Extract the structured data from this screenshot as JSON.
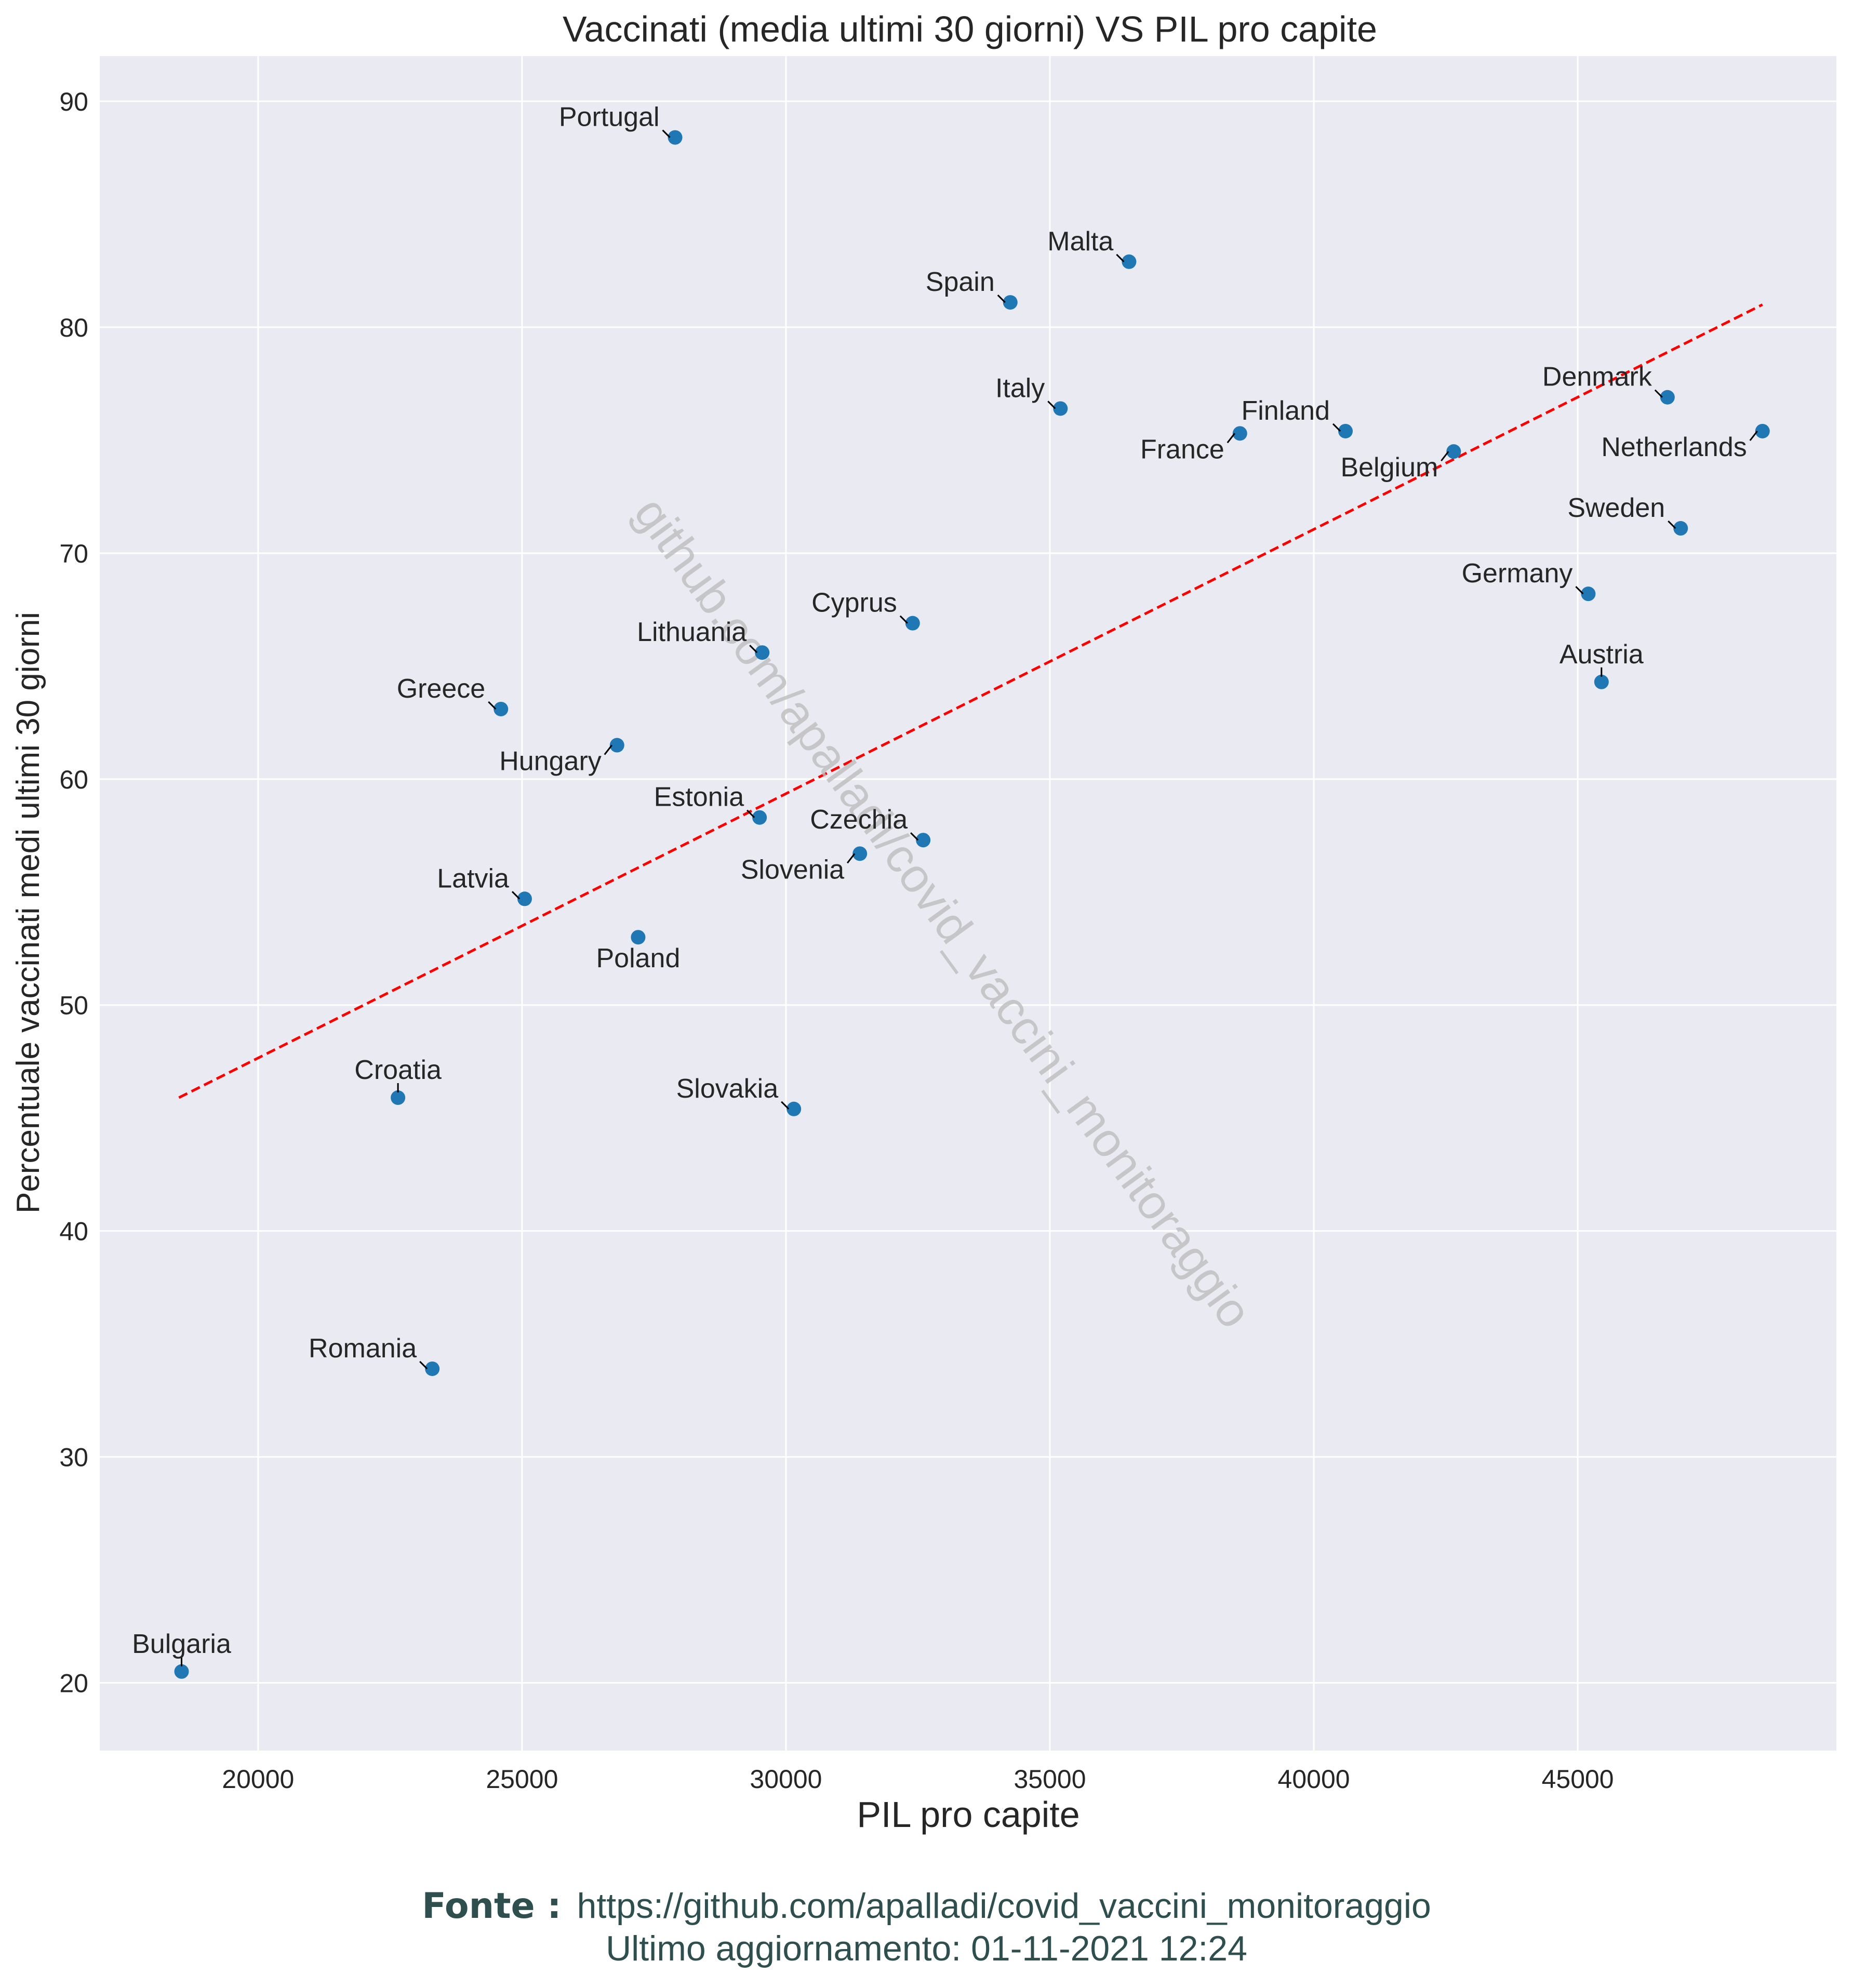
{
  "chart_data": {
    "type": "scatter",
    "title": "Vaccinati (media ultimi 30 giorni) VS PIL pro capite",
    "xlabel": "PIL pro capite",
    "ylabel": "Percentuale vaccinati medi ultimi 30 giorni",
    "xlim": [
      17000,
      49900
    ],
    "ylim": [
      17,
      92
    ],
    "xticks": [
      20000,
      25000,
      30000,
      35000,
      40000,
      45000
    ],
    "yticks": [
      20,
      30,
      40,
      50,
      60,
      70,
      80,
      90
    ],
    "grid": true,
    "point_color": "#1f77b4",
    "trend_color": "#ff0000",
    "trendline": {
      "x": [
        18500,
        48500
      ],
      "y": [
        45.9,
        81.0
      ]
    },
    "points": [
      {
        "label": "Portugal",
        "x": 27900,
        "y": 88.4,
        "label_pos": "upper-left"
      },
      {
        "label": "Malta",
        "x": 36500,
        "y": 82.9,
        "label_pos": "upper-left"
      },
      {
        "label": "Spain",
        "x": 34250,
        "y": 81.1,
        "label_pos": "upper-left"
      },
      {
        "label": "Italy",
        "x": 35200,
        "y": 76.4,
        "label_pos": "upper-left"
      },
      {
        "label": "Finland",
        "x": 40600,
        "y": 75.4,
        "label_pos": "upper-left"
      },
      {
        "label": "France",
        "x": 38600,
        "y": 75.3,
        "label_pos": "lower-left"
      },
      {
        "label": "Belgium",
        "x": 42650,
        "y": 74.5,
        "label_pos": "lower-left"
      },
      {
        "label": "Denmark",
        "x": 46700,
        "y": 76.9,
        "label_pos": "upper-left"
      },
      {
        "label": "Netherlands",
        "x": 48500,
        "y": 75.4,
        "label_pos": "lower-left"
      },
      {
        "label": "Sweden",
        "x": 46950,
        "y": 71.1,
        "label_pos": "upper-left"
      },
      {
        "label": "Germany",
        "x": 45200,
        "y": 68.2,
        "label_pos": "upper-left"
      },
      {
        "label": "Austria",
        "x": 45450,
        "y": 64.3,
        "label_pos": "above"
      },
      {
        "label": "Cyprus",
        "x": 32400,
        "y": 66.9,
        "label_pos": "upper-left"
      },
      {
        "label": "Lithuania",
        "x": 29550,
        "y": 65.6,
        "label_pos": "upper-left"
      },
      {
        "label": "Greece",
        "x": 24600,
        "y": 63.1,
        "label_pos": "upper-left"
      },
      {
        "label": "Hungary",
        "x": 26800,
        "y": 61.5,
        "label_pos": "lower-left"
      },
      {
        "label": "Estonia",
        "x": 29500,
        "y": 58.3,
        "label_pos": "upper-left"
      },
      {
        "label": "Czechia",
        "x": 32600,
        "y": 57.3,
        "label_pos": "upper-left"
      },
      {
        "label": "Slovenia",
        "x": 31400,
        "y": 56.7,
        "label_pos": "lower-left"
      },
      {
        "label": "Latvia",
        "x": 25050,
        "y": 54.7,
        "label_pos": "upper-left"
      },
      {
        "label": "Poland",
        "x": 27200,
        "y": 53.0,
        "label_pos": "below"
      },
      {
        "label": "Croatia",
        "x": 22650,
        "y": 45.9,
        "label_pos": "above"
      },
      {
        "label": "Slovakia",
        "x": 30150,
        "y": 45.4,
        "label_pos": "upper-left"
      },
      {
        "label": "Romania",
        "x": 23300,
        "y": 33.9,
        "label_pos": "upper-left"
      },
      {
        "label": "Bulgaria",
        "x": 18550,
        "y": 20.5,
        "label_pos": "above"
      }
    ]
  },
  "watermark": "github.com/apalladi/covid_vaccini_monitoraggio",
  "footer": {
    "source_label": "Fonte :",
    "source_url": "https://github.com/apalladi/covid_vaccini_monitoraggio",
    "updated": "Ultimo aggiornamento: 01-11-2021 12:24"
  }
}
